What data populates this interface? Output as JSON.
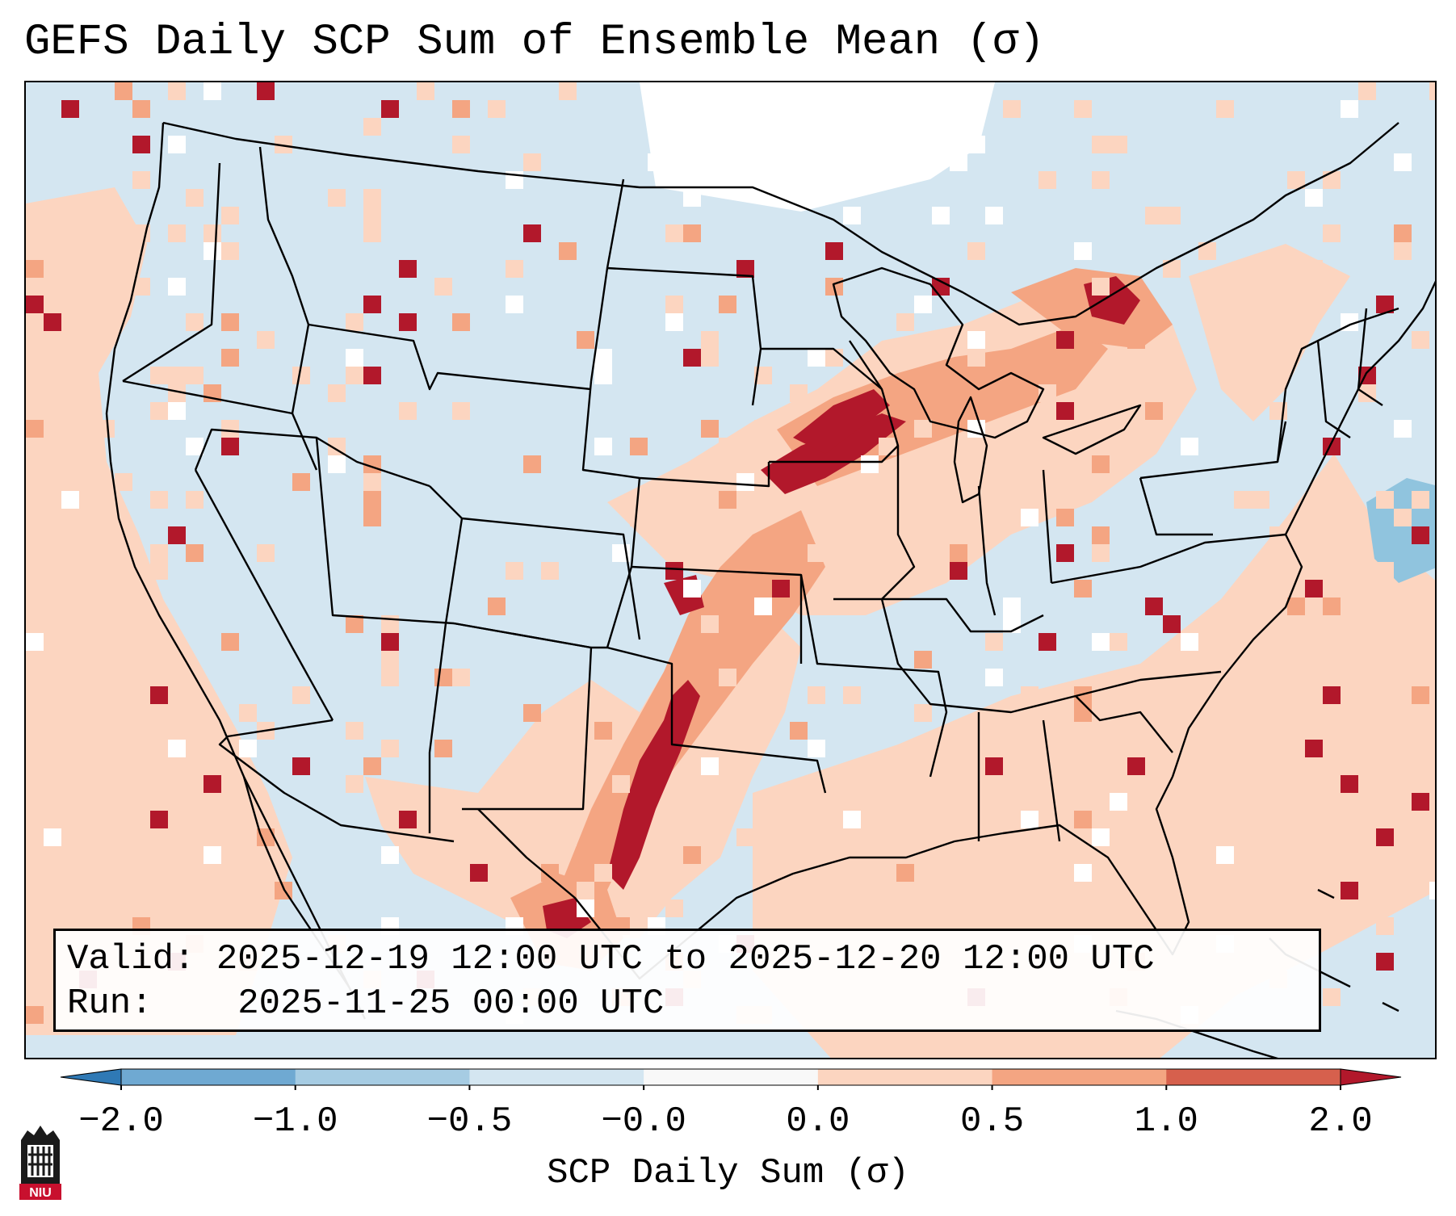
{
  "title": "GEFS Daily SCP Sum of Ensemble Mean (σ)",
  "info": {
    "valid_label": "Valid:",
    "valid_range": "2025-12-19 12:00 UTC to 2025-12-20 12:00 UTC",
    "run_label": "Run:",
    "run_time": "2025-11-25 00:00 UTC"
  },
  "colorbar": {
    "label": "SCP Daily Sum (σ)",
    "ticks": [
      "−2.0",
      "−1.0",
      "−0.5",
      "−0.0",
      "0.0",
      "0.5",
      "1.0",
      "2.0"
    ],
    "bins": [
      {
        "color": "#2f79b5"
      },
      {
        "color": "#6fa9d2"
      },
      {
        "color": "#a6cce3"
      },
      {
        "color": "#d4e6f1"
      },
      {
        "color": "#f8f8f8"
      },
      {
        "color": "#fcd5c0"
      },
      {
        "color": "#f4a582"
      },
      {
        "color": "#d6604d"
      },
      {
        "color": "#b2182b"
      }
    ]
  },
  "logo": {
    "text": "NIU",
    "icon": "university-tower-icon"
  },
  "colors": {
    "background": "#d4e6f1",
    "light_red": "#fcd5c0",
    "medium_red": "#f4a582",
    "dark_red": "#b2182b",
    "light_blue": "#90c4de",
    "white": "#ffffff",
    "border": "#000000"
  }
}
